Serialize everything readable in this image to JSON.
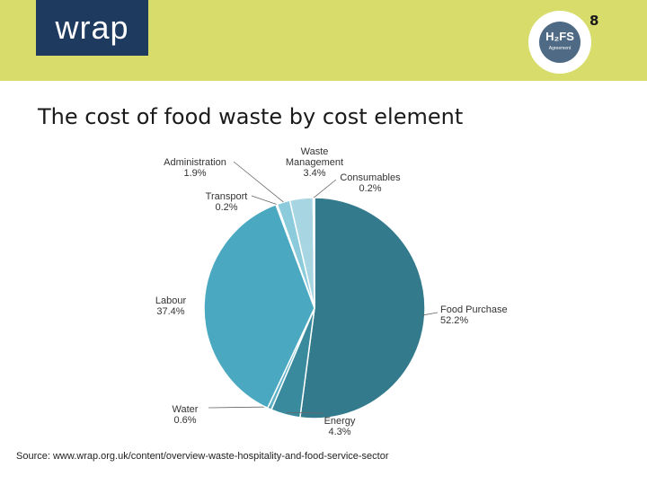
{
  "header": {
    "logo_text": "wrap",
    "badge_title": "H₂FS",
    "badge_subtitle": "Agreement",
    "page_number": "8"
  },
  "slide": {
    "title": "The cost of food waste by cost element",
    "source": "Source: www.wrap.org.uk/content/overview-waste-hospitality-and-food-service-sector"
  },
  "colors": {
    "header_bg": "#d8dc6a",
    "logo_bg": "#1f3a5f",
    "food_purchase": "#337a8c",
    "energy": "#3a8a9e",
    "water": "#5bb0c6",
    "labour": "#4aa8c0",
    "transport": "#6cbfd3",
    "administration": "#8ccbdb",
    "waste_management": "#a8d5e2",
    "consumables": "#c2e2eb"
  },
  "chart_data": {
    "type": "pie",
    "title": "",
    "slices": [
      {
        "label": "Food Purchase",
        "value": 52.2,
        "pct": "52.2%"
      },
      {
        "label": "Energy",
        "value": 4.3,
        "pct": "4.3%"
      },
      {
        "label": "Water",
        "value": 0.6,
        "pct": "0.6%"
      },
      {
        "label": "Labour",
        "value": 37.4,
        "pct": "37.4%"
      },
      {
        "label": "Transport",
        "value": 0.2,
        "pct": "0.2%"
      },
      {
        "label": "Administration",
        "value": 1.9,
        "pct": "1.9%"
      },
      {
        "label": "Waste Management",
        "value": 3.4,
        "pct": "3.4%"
      },
      {
        "label": "Consumables",
        "value": 0.2,
        "pct": "0.2%"
      }
    ]
  }
}
